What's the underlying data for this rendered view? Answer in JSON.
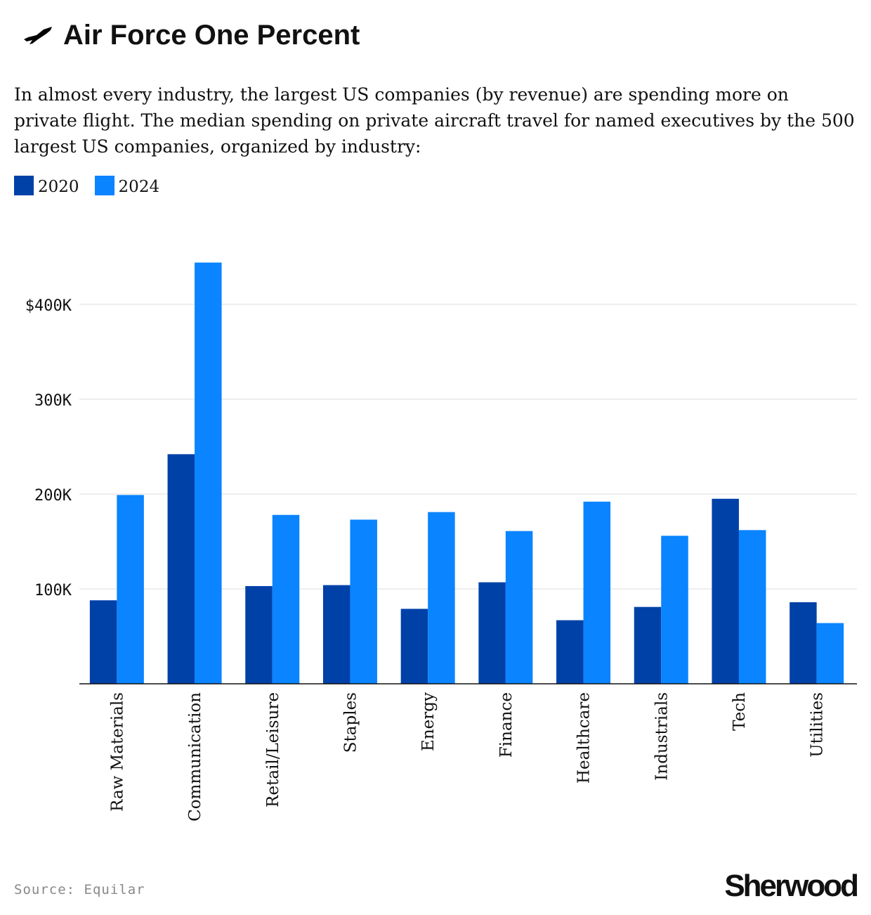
{
  "header": {
    "title": "Air Force One Percent",
    "icon": "airplane-icon",
    "subtitle": "In almost every industry, the largest US companies (by revenue) are spending more on private flight. The median spending on private aircraft travel for named executives by the 500 largest US companies, organized by industry:"
  },
  "legend": [
    {
      "label": "2020",
      "color": "#0041a8"
    },
    {
      "label": "2024",
      "color": "#0a84ff"
    }
  ],
  "footer": {
    "source": "Source: Equilar",
    "brand": "Sherwood"
  },
  "chart_data": {
    "type": "bar",
    "categories": [
      "Raw Materials",
      "Communication",
      "Retail/Leisure",
      "Staples",
      "Energy",
      "Finance",
      "Healthcare",
      "Industrials",
      "Tech",
      "Utilities"
    ],
    "series": [
      {
        "name": "2020",
        "color": "#0041a8",
        "values": [
          88,
          242,
          103,
          104,
          79,
          107,
          67,
          81,
          195,
          86
        ]
      },
      {
        "name": "2024",
        "color": "#0a84ff",
        "values": [
          199,
          444,
          178,
          173,
          181,
          161,
          192,
          156,
          162,
          64
        ]
      }
    ],
    "unit": "thousands USD",
    "yticks": [
      {
        "value": 100,
        "label": "100K"
      },
      {
        "value": 200,
        "label": "200K"
      },
      {
        "value": 300,
        "label": "300K"
      },
      {
        "value": 400,
        "label": "$400K"
      }
    ],
    "ylim": [
      0,
      450
    ],
    "grid": true,
    "legend_position": "top-left"
  }
}
